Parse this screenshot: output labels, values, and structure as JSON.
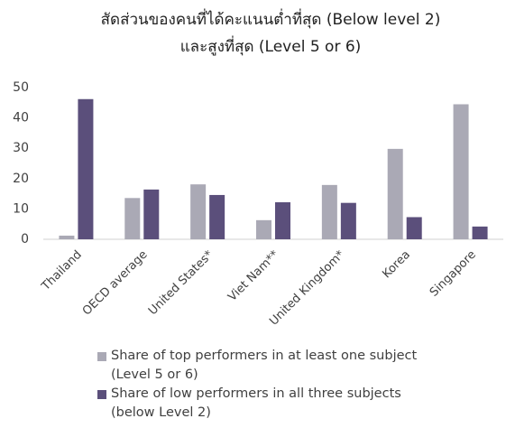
{
  "chart_data": {
    "type": "bar",
    "title": [
      "สัดส่วนของคนที่ได้คะแนนต่ำที่สุด (Below level 2)",
      "และสูงที่สุด (Level 5 or 6)"
    ],
    "categories": [
      "Thailand",
      "OECD average",
      "United States*",
      "Viet Nam**",
      "United Kingdom*",
      "Korea",
      "Singapore"
    ],
    "series": [
      {
        "name": "Share of top performers in at least one subject (Level 5 or 6)",
        "color": "#aaa9b5",
        "values": [
          1.2,
          13.6,
          18.1,
          6.3,
          17.9,
          29.8,
          44.5
        ]
      },
      {
        "name": "Share of low performers in all three subjects (below Level 2)",
        "color": "#5b4f7b",
        "values": [
          46.2,
          16.4,
          14.6,
          12.2,
          12.0,
          7.3,
          4.2
        ]
      }
    ],
    "ylim": [
      0,
      50
    ],
    "yticks": [
      0,
      10,
      20,
      30,
      40,
      50
    ],
    "grid": false
  }
}
